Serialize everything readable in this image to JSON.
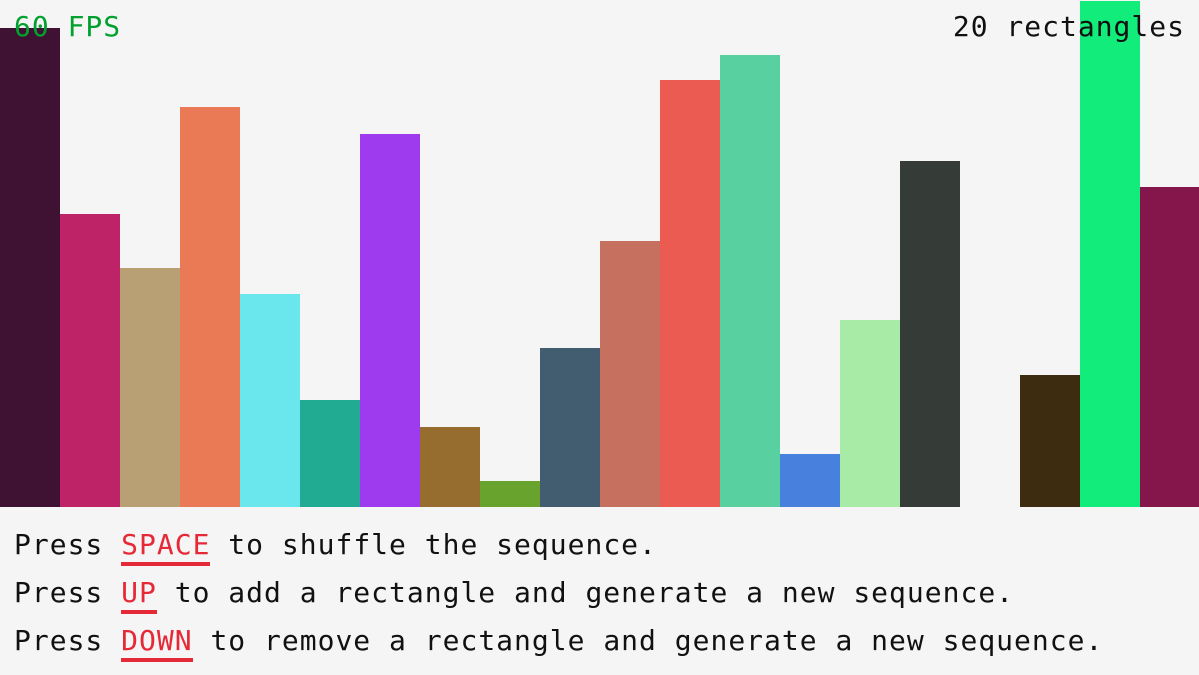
{
  "hud": {
    "fps": "60 FPS",
    "count": "20 rectangles",
    "fps_color": "#00a12f"
  },
  "rectangles": [
    {
      "value": 0.945,
      "color": "#3f1233"
    },
    {
      "value": 0.578,
      "color": "#be2368"
    },
    {
      "value": 0.471,
      "color": "#b8a074"
    },
    {
      "value": 0.789,
      "color": "#ea7a55"
    },
    {
      "value": 0.42,
      "color": "#69e7ed"
    },
    {
      "value": 0.211,
      "color": "#22ab93"
    },
    {
      "value": 0.736,
      "color": "#9e3bef"
    },
    {
      "value": 0.158,
      "color": "#976d2f"
    },
    {
      "value": 0.051,
      "color": "#68a42d"
    },
    {
      "value": 0.314,
      "color": "#425d70"
    },
    {
      "value": 0.525,
      "color": "#c6705f"
    },
    {
      "value": 0.842,
      "color": "#ec5b52"
    },
    {
      "value": 0.892,
      "color": "#58d0a0"
    },
    {
      "value": 0.105,
      "color": "#4880de"
    },
    {
      "value": 0.369,
      "color": "#a8eba7"
    },
    {
      "value": 0.682,
      "color": "#353b37"
    },
    {
      "value": 0.0,
      "color": "#f5f5f5"
    },
    {
      "value": 0.26,
      "color": "#3d2c10"
    },
    {
      "value": 0.998,
      "color": "#12ec7a"
    },
    {
      "value": 0.631,
      "color": "#84164b"
    }
  ],
  "instructions": [
    {
      "pre": "Press ",
      "key": "SPACE",
      "post": " to shuffle the sequence."
    },
    {
      "pre": "Press ",
      "key": "UP",
      "post": " to add a rectangle and generate a new sequence."
    },
    {
      "pre": "Press ",
      "key": "DOWN",
      "post": " to remove a rectangle and generate a new sequence."
    }
  ],
  "key_color": "#e62937"
}
